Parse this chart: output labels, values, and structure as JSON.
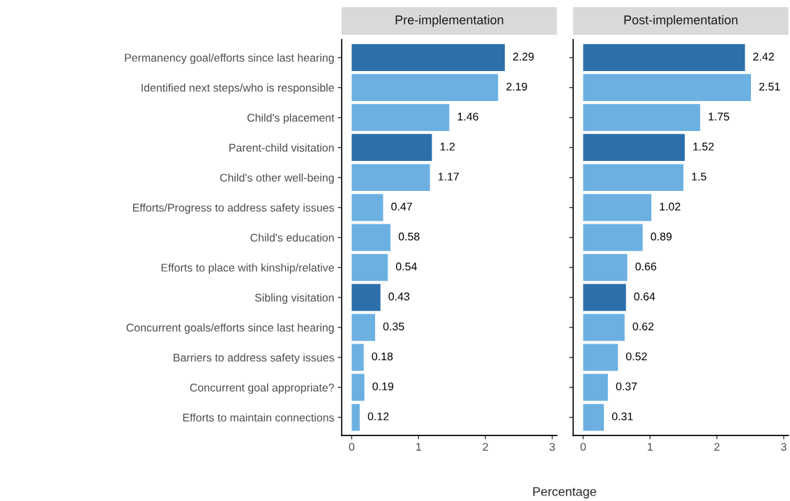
{
  "chart_data": [
    {
      "type": "bar",
      "orientation": "horizontal",
      "title": "Pre-implementation",
      "xlabel": "Percentage",
      "categories": [
        "Permanency goal/efforts since last hearing",
        "Identified next steps/who is responsible",
        "Child's placement",
        "Parent-child visitation",
        "Child's other well-being",
        "Efforts/Progress to address safety issues",
        "Child's education",
        "Efforts to place with kinship/relative",
        "Sibling visitation",
        "Concurrent goals/efforts since last hearing",
        "Barriers to address safety issues",
        "Concurrent goal appropriate?",
        "Efforts to maintain connections"
      ],
      "values": [
        2.29,
        2.19,
        1.46,
        1.2,
        1.17,
        0.47,
        0.58,
        0.54,
        0.43,
        0.35,
        0.18,
        0.19,
        0.12
      ],
      "colors": [
        "#2c6fab",
        "#6cb0e2",
        "#6cb0e2",
        "#2c6fab",
        "#6cb0e2",
        "#6cb0e2",
        "#6cb0e2",
        "#6cb0e2",
        "#2c6fab",
        "#6cb0e2",
        "#6cb0e2",
        "#6cb0e2",
        "#6cb0e2"
      ],
      "xlim": [
        -0.15,
        3.07
      ],
      "xticks": [
        0,
        1,
        2,
        3
      ],
      "data_labels": true,
      "grid": false
    },
    {
      "type": "bar",
      "orientation": "horizontal",
      "title": "Post-implementation",
      "categories": [
        "Permanency goal/efforts since last hearing",
        "Identified next steps/who is responsible",
        "Child's placement",
        "Parent-child visitation",
        "Child's other well-being",
        "Efforts/Progress to address safety issues",
        "Child's education",
        "Efforts to place with kinship/relative",
        "Sibling visitation",
        "Concurrent goals/efforts since last hearing",
        "Barriers to address safety issues",
        "Concurrent goal appropriate?",
        "Efforts to maintain connections"
      ],
      "values": [
        2.42,
        2.51,
        1.75,
        1.52,
        1.5,
        1.02,
        0.89,
        0.66,
        0.64,
        0.62,
        0.52,
        0.37,
        0.31
      ],
      "colors": [
        "#2c6fab",
        "#6cb0e2",
        "#6cb0e2",
        "#2c6fab",
        "#6cb0e2",
        "#6cb0e2",
        "#6cb0e2",
        "#6cb0e2",
        "#2c6fab",
        "#6cb0e2",
        "#6cb0e2",
        "#6cb0e2",
        "#6cb0e2"
      ],
      "xlim": [
        -0.15,
        3.07
      ],
      "xticks": [
        0,
        1,
        2,
        3
      ],
      "data_labels": true,
      "grid": false,
      "tick_labels": "x"
    }
  ]
}
